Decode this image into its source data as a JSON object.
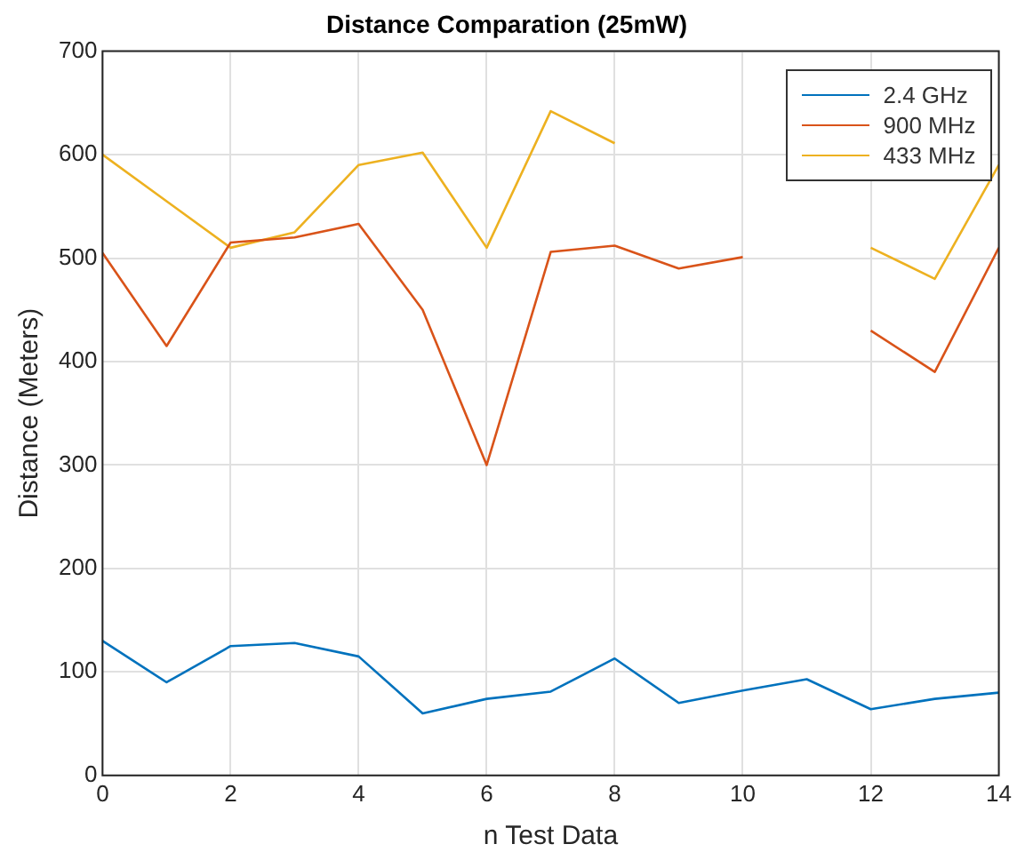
{
  "chart_data": {
    "type": "line",
    "title": "Distance Comparation (25mW)",
    "xlabel": "n Test Data",
    "ylabel": "Distance (Meters)",
    "x": [
      0,
      1,
      2,
      3,
      4,
      5,
      6,
      7,
      8,
      9,
      10,
      11,
      12,
      13,
      14
    ],
    "series": [
      {
        "name": "2.4 GHz",
        "color": "#0072bd",
        "values": [
          130,
          90,
          125,
          128,
          115,
          60,
          74,
          81,
          113,
          70,
          82,
          93,
          64,
          74,
          80
        ]
      },
      {
        "name": "900 MHz",
        "color": "#d95319",
        "values": [
          505,
          415,
          515,
          520,
          533,
          450,
          300,
          506,
          512,
          490,
          501,
          null,
          430,
          390,
          510
        ]
      },
      {
        "name": "433 MHz",
        "color": "#edb120",
        "values": [
          600,
          555,
          510,
          525,
          590,
          602,
          510,
          642,
          611,
          null,
          null,
          null,
          510,
          480,
          590
        ]
      }
    ],
    "xlim": [
      0,
      14
    ],
    "xticks": [
      0,
      2,
      4,
      6,
      8,
      10,
      12,
      14
    ],
    "ylim": [
      0,
      700
    ],
    "yticks": [
      0,
      100,
      200,
      300,
      400,
      500,
      600,
      700
    ],
    "grid": true,
    "legend": "top right",
    "marker": "none",
    "line_style": "solid"
  }
}
